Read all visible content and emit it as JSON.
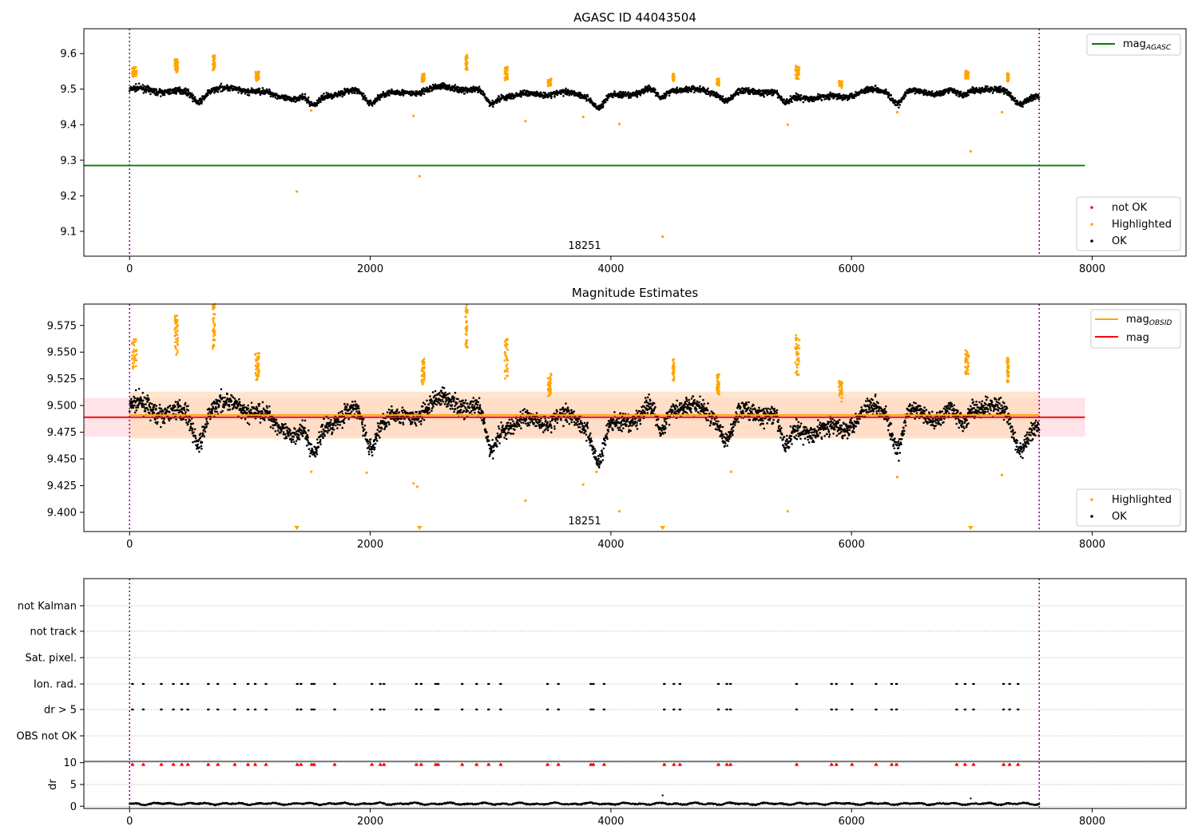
{
  "colors": {
    "ok": "#000000",
    "highlighted": "#ffa500",
    "not_ok": "#ff0000",
    "mag_agasc": "#008000",
    "mag_obsid": "#ffa500",
    "mag": "#ff0000",
    "band_mag": "#ffc0cb",
    "band_obsid": "#ffdab9",
    "obsid_boundary": "#800080",
    "grid": "#b0b0b0"
  },
  "chart_data": [
    {
      "type": "scatter",
      "title": "AGASC ID 44043504",
      "xlabel": "",
      "ylabel": "",
      "xlim": [
        -380,
        8780
      ],
      "ylim": [
        9.03,
        9.67
      ],
      "xticks": [
        "0",
        "2000",
        "4000",
        "6000",
        "8000"
      ],
      "yticks": [
        "9.1",
        "9.2",
        "9.3",
        "9.4",
        "9.5",
        "9.6"
      ],
      "obsid_label": "18251",
      "obsid_bounds": [
        0,
        7560
      ],
      "lines": [
        {
          "name": "mag_AGASC",
          "y": 9.285,
          "x": [
            -380,
            7940
          ],
          "color": "#008000"
        }
      ],
      "legend_lines": [
        "mag_AGASC"
      ],
      "legend_lines_loc": "upper right",
      "legend_points": [
        "not OK",
        "Highlighted",
        "OK"
      ],
      "legend_points_loc": "lower right",
      "ok_baseline": 9.49,
      "highlighted_outliers": [
        [
          1390,
          9.212
        ],
        [
          2410,
          9.255
        ],
        [
          4430,
          9.085
        ],
        [
          6990,
          9.325
        ],
        [
          3290,
          9.41
        ],
        [
          3770,
          9.422
        ],
        [
          4070,
          9.402
        ],
        [
          5470,
          9.4
        ],
        [
          2360,
          9.425
        ],
        [
          1510,
          9.44
        ],
        [
          6380,
          9.435
        ],
        [
          7250,
          9.435
        ]
      ]
    },
    {
      "type": "scatter",
      "title": "Magnitude Estimates",
      "xlabel": "",
      "ylabel": "",
      "xlim": [
        -380,
        8780
      ],
      "ylim": [
        9.382,
        9.595
      ],
      "xticks": [
        "0",
        "2000",
        "4000",
        "6000",
        "8000"
      ],
      "yticks": [
        "9.400",
        "9.425",
        "9.450",
        "9.475",
        "9.500",
        "9.525",
        "9.550",
        "9.575"
      ],
      "obsid_label": "18251",
      "obsid_bounds": [
        0,
        7560
      ],
      "lines": [
        {
          "name": "mag_OBSID",
          "y": 9.491,
          "x": [
            0,
            7560
          ],
          "color": "#ffa500",
          "band": [
            9.469,
            9.513
          ]
        },
        {
          "name": "mag",
          "y": 9.489,
          "x": [
            -380,
            7940
          ],
          "color": "#ff0000",
          "band": [
            9.471,
            9.507
          ]
        }
      ],
      "legend_lines": [
        "mag_OBSID",
        "mag"
      ],
      "legend_lines_loc": "upper right",
      "legend_points": [
        "Highlighted",
        "OK"
      ],
      "legend_points_loc": "lower right",
      "offscale_markers_x": [
        1390,
        2410,
        4430,
        6990
      ],
      "highlighted_outliers": [
        [
          3290,
          9.411
        ],
        [
          3770,
          9.426
        ],
        [
          4070,
          9.401
        ],
        [
          5470,
          9.401
        ],
        [
          2360,
          9.427
        ],
        [
          2390,
          9.424
        ],
        [
          1510,
          9.438
        ],
        [
          1970,
          9.437
        ],
        [
          6380,
          9.433
        ],
        [
          7250,
          9.435
        ],
        [
          3880,
          9.438
        ],
        [
          5000,
          9.438
        ]
      ]
    },
    {
      "type": "scatter",
      "title": "",
      "xlim": [
        -380,
        8780
      ],
      "obsid_bounds": [
        0,
        7560
      ],
      "categories": [
        "not Kalman",
        "not track",
        "Sat. pixel.",
        "Ion. rad.",
        "dr > 5",
        "OBS not OK"
      ],
      "flag_x": [
        20,
        110,
        260,
        360,
        430,
        480,
        650,
        730,
        870,
        980,
        1040,
        1130,
        1390,
        1420,
        1510,
        1530,
        1700,
        2010,
        2080,
        2110,
        2380,
        2420,
        2540,
        2560,
        2760,
        2880,
        2980,
        3080,
        3470,
        3560,
        3830,
        3850,
        3940,
        4440,
        4520,
        4570,
        4890,
        4960,
        4990,
        5540,
        5830,
        5870,
        6000,
        6200,
        6330,
        6370,
        6870,
        6940,
        7010,
        7260,
        7310,
        7380
      ],
      "flag_rows": [
        "Ion. rad.",
        "dr > 5"
      ],
      "dr_ylabel": "dr",
      "dr_yticks": [
        "0",
        "5",
        "10"
      ],
      "dr_ylim": [
        -0.5,
        10.3
      ],
      "dr_clip": 10,
      "dr_spikes": [
        [
          4430,
          2.5
        ],
        [
          6990,
          1.8
        ]
      ],
      "xticks": [
        "0",
        "2000",
        "4000",
        "6000",
        "8000"
      ]
    }
  ]
}
